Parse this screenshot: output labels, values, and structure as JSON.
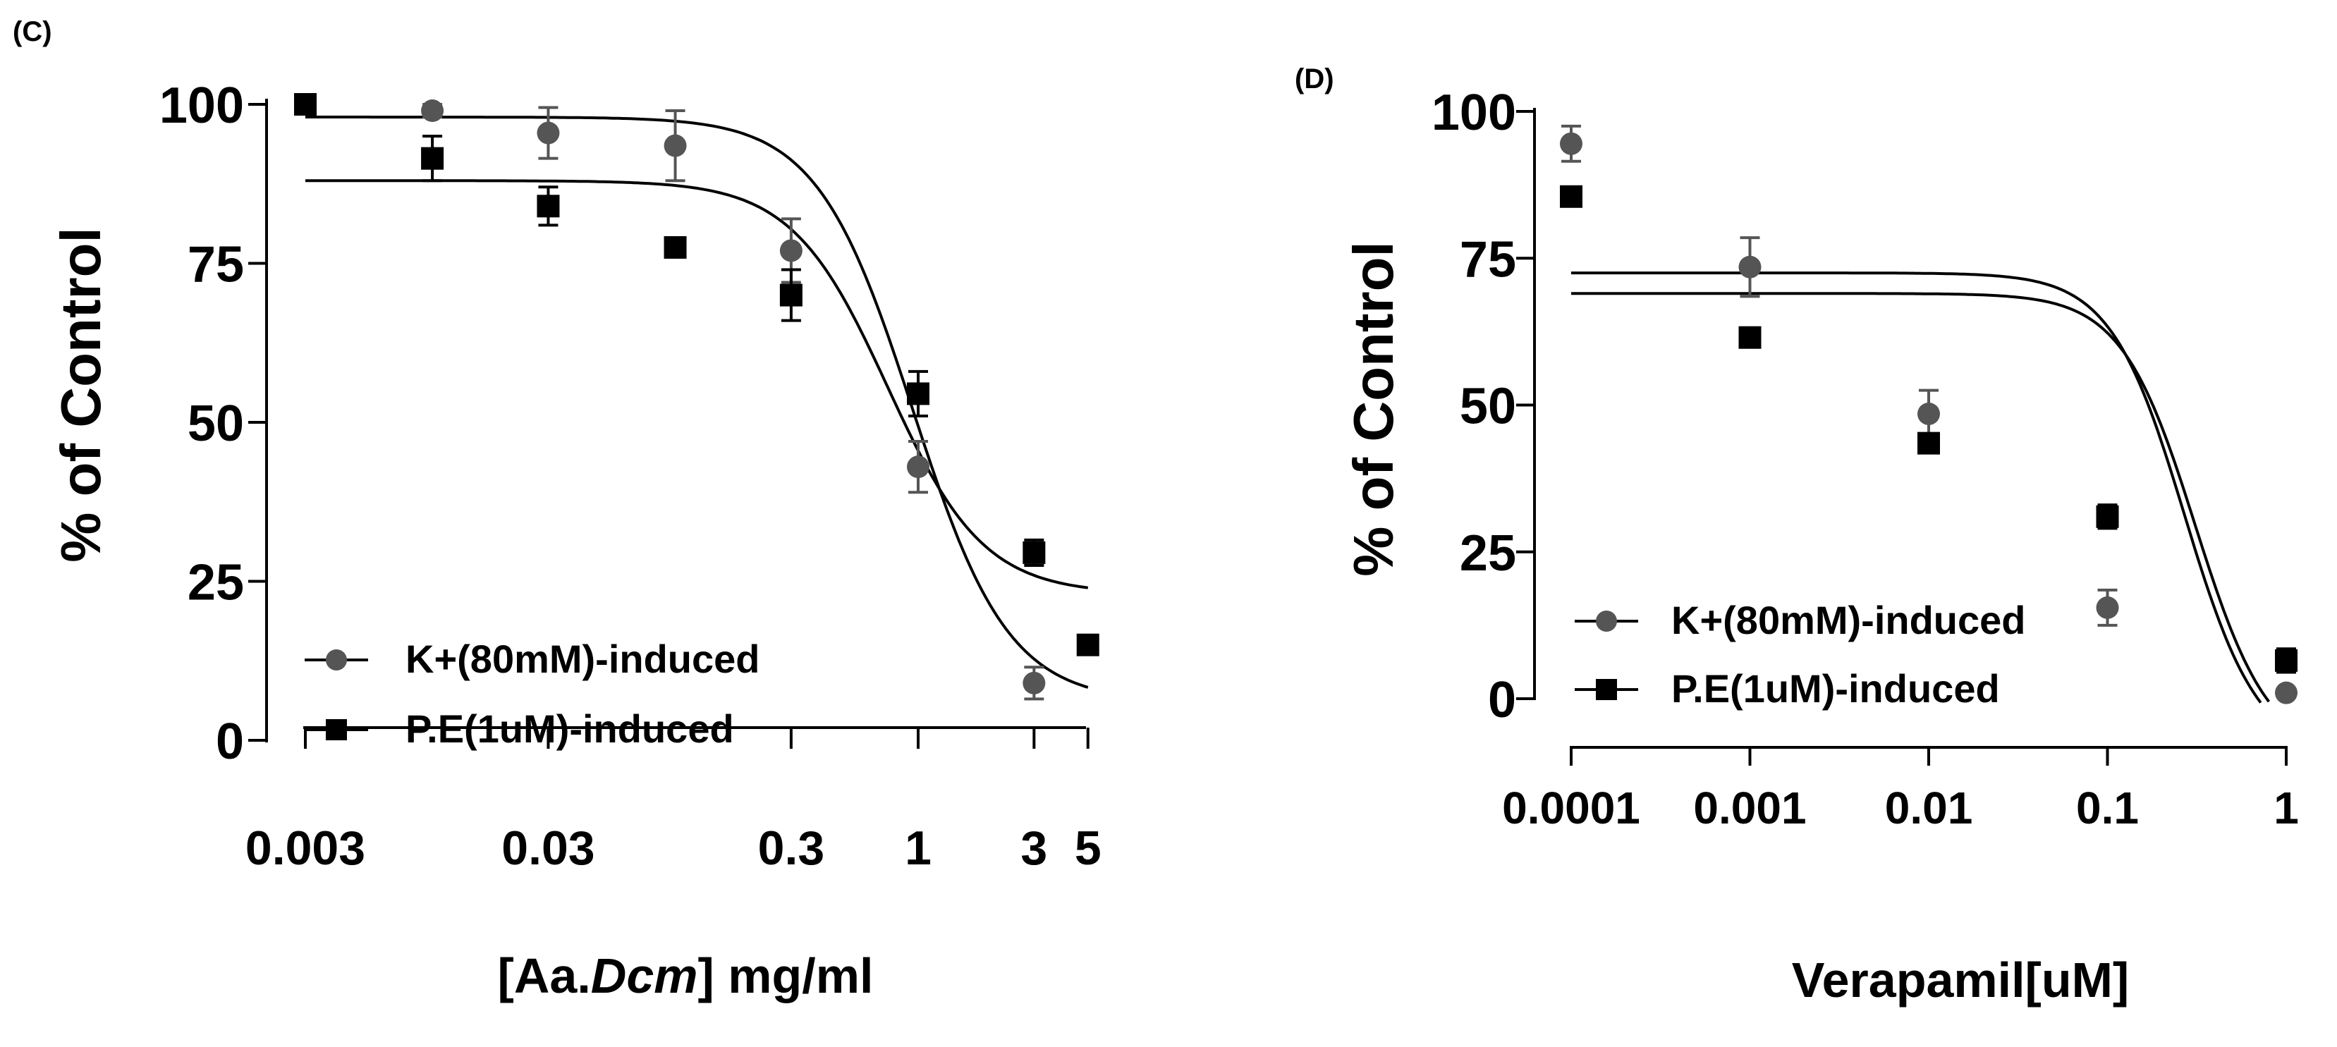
{
  "chart_data": [
    {
      "panel_label": "(C)",
      "type": "scatter",
      "x_scale": "log",
      "title": "",
      "xlabel_parts": [
        "[Aa.",
        "Dcm",
        "] mg/ml"
      ],
      "ylabel": "% of Control",
      "xlim": [
        0.003,
        5
      ],
      "ylim": [
        0,
        100
      ],
      "xticks": [
        0.003,
        0.03,
        0.3,
        1,
        3,
        5
      ],
      "xtick_labels": [
        "0.003",
        "0.03",
        "0.3",
        "1",
        "3",
        "5"
      ],
      "yticks": [
        0,
        25,
        50,
        75,
        100
      ],
      "ytick_labels": [
        "0",
        "25",
        "50",
        "75",
        "100"
      ],
      "legend_position": "bottom-left",
      "series": [
        {
          "name": "K+(80mM)-induced",
          "marker": "circle",
          "color": "#555555",
          "points": [
            {
              "x": 0.003,
              "y": 100,
              "err": 0
            },
            {
              "x": 0.01,
              "y": 99,
              "err": 1
            },
            {
              "x": 0.03,
              "y": 95.5,
              "err": 4
            },
            {
              "x": 0.1,
              "y": 93.5,
              "err": 5.5
            },
            {
              "x": 0.3,
              "y": 77,
              "err": 5
            },
            {
              "x": 1,
              "y": 43,
              "err": 4
            },
            {
              "x": 3,
              "y": 9,
              "err": 2.5
            }
          ],
          "fit": {
            "top": 98,
            "bottom": 6,
            "ec50": 0.95,
            "hill": 2.2
          }
        },
        {
          "name": "P.E(1uM)-induced",
          "marker": "square",
          "color": "#000000",
          "points": [
            {
              "x": 0.003,
              "y": 100,
              "err": 0
            },
            {
              "x": 0.01,
              "y": 91.5,
              "err": 3.5
            },
            {
              "x": 0.03,
              "y": 84,
              "err": 3
            },
            {
              "x": 0.1,
              "y": 77.5,
              "err": 1.5
            },
            {
              "x": 0.3,
              "y": 70,
              "err": 4
            },
            {
              "x": 1,
              "y": 54.5,
              "err": 3.5
            },
            {
              "x": 3,
              "y": 29.5,
              "err": 2
            },
            {
              "x": 5,
              "y": 15,
              "err": 0
            }
          ],
          "fit": {
            "top": 88,
            "bottom": 23,
            "ec50": 0.75,
            "hill": 2.2
          }
        }
      ]
    },
    {
      "panel_label": "(D)",
      "type": "scatter",
      "x_scale": "log",
      "title": "",
      "xlabel": "Verapamil[uM]",
      "ylabel": "% of Control",
      "xlim": [
        0.0001,
        1
      ],
      "ylim": [
        0,
        100
      ],
      "xticks": [
        0.0001,
        0.001,
        0.01,
        0.1,
        1
      ],
      "xtick_labels": [
        "0.0001",
        "0.001",
        "0.01",
        "0.1",
        "1"
      ],
      "yticks": [
        0,
        25,
        50,
        75,
        100
      ],
      "ytick_labels": [
        "0",
        "25",
        "50",
        "75",
        "100"
      ],
      "legend_position": "bottom-left",
      "series": [
        {
          "name": "K+(80mM)-induced",
          "marker": "circle",
          "color": "#555555",
          "points": [
            {
              "x": 0.0001,
              "y": 94.5,
              "err": 3
            },
            {
              "x": 0.001,
              "y": 73.5,
              "err": 5
            },
            {
              "x": 0.01,
              "y": 48.5,
              "err": 4
            },
            {
              "x": 0.1,
              "y": 15.5,
              "err": 3
            },
            {
              "x": 1,
              "y": 1,
              "err": 0
            }
          ],
          "fit": {
            "top": 72.5,
            "bottom": -10,
            "ec50": 0.27,
            "hill": 2.1,
            "xmax": 0.72
          }
        },
        {
          "name": "P.E(1uM)-induced",
          "marker": "square",
          "color": "#000000",
          "points": [
            {
              "x": 0.0001,
              "y": 85.5,
              "err": 0
            },
            {
              "x": 0.001,
              "y": 61.5,
              "err": 0
            },
            {
              "x": 0.01,
              "y": 43.5,
              "err": 1.5
            },
            {
              "x": 0.1,
              "y": 31,
              "err": 2
            },
            {
              "x": 1,
              "y": 6.5,
              "err": 2
            }
          ],
          "fit": {
            "top": 69,
            "bottom": -10,
            "ec50": 0.31,
            "hill": 2.1,
            "xmax": 0.8
          }
        }
      ]
    }
  ]
}
